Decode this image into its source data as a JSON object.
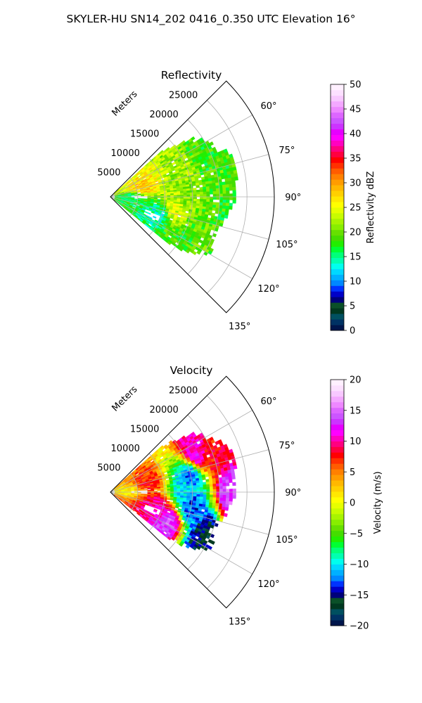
{
  "suptitle": "SKYLER-HU  SN14_202  0416_0.350 UTC Elevation 16°",
  "panels": [
    {
      "id": "reflectivity",
      "title": "Reflectivity",
      "radial_label": "Meters",
      "r_ticks": [
        5000,
        10000,
        15000,
        20000,
        25000
      ],
      "r_tick_labels": [
        "5000",
        "10000",
        "15000",
        "20000",
        "25000"
      ],
      "theta_ticks": [
        60,
        75,
        90,
        105,
        120,
        135
      ],
      "theta_tick_labels": [
        "60°",
        "75°",
        "90°",
        "105°",
        "120°",
        "135°"
      ],
      "colorbar": {
        "label": "Reflectivity dBZ",
        "min": 0,
        "max": 50,
        "ticks": [
          0,
          5,
          10,
          15,
          20,
          25,
          30,
          35,
          40,
          45,
          50
        ],
        "tick_labels": [
          "0",
          "5",
          "10",
          "15",
          "20",
          "25",
          "30",
          "35",
          "40",
          "45",
          "50"
        ],
        "colors": [
          "#00164c",
          "#003264",
          "#005060",
          "#003820",
          "#0a5028",
          "#00007a",
          "#0000c8",
          "#0033ff",
          "#0088ff",
          "#00b0ff",
          "#00d8ff",
          "#00ffee",
          "#00ffb0",
          "#00ff7a",
          "#00ff33",
          "#22ee00",
          "#44dd00",
          "#66e000",
          "#88ee00",
          "#a8f400",
          "#c8fc00",
          "#e6ff00",
          "#ffff00",
          "#ffe800",
          "#ffd000",
          "#ffb800",
          "#ff9c00",
          "#ff8000",
          "#ff5c00",
          "#ff3000",
          "#ff0000",
          "#ff0040",
          "#ff0080",
          "#ff00c0",
          "#ff00ff",
          "#e600ff",
          "#cc33ff",
          "#cc55ff",
          "#dd66ff",
          "#ee88ff",
          "#f4a8ff",
          "#f8c8ff",
          "#fce0ff",
          "#fff0ff"
        ]
      }
    },
    {
      "id": "velocity",
      "title": "Velocity",
      "radial_label": "Meters",
      "r_ticks": [
        5000,
        10000,
        15000,
        20000,
        25000
      ],
      "r_tick_labels": [
        "5000",
        "10000",
        "15000",
        "20000",
        "25000"
      ],
      "theta_ticks": [
        60,
        75,
        90,
        105,
        120,
        135
      ],
      "theta_tick_labels": [
        "60°",
        "75°",
        "90°",
        "105°",
        "120°",
        "135°"
      ],
      "colorbar": {
        "label": "Velocity (m/s)",
        "min": -20,
        "max": 20,
        "ticks": [
          -20,
          -15,
          -10,
          -5,
          0,
          5,
          10,
          15,
          20
        ],
        "tick_labels": [
          "−20",
          "−15",
          "−10",
          "−5",
          "0",
          "5",
          "10",
          "15",
          "20"
        ],
        "colors": [
          "#00164c",
          "#003264",
          "#005060",
          "#003820",
          "#0a5028",
          "#00007a",
          "#0000c8",
          "#0033ff",
          "#0088ff",
          "#00b0ff",
          "#00d8ff",
          "#00ffee",
          "#00ffb0",
          "#00ff7a",
          "#00ff33",
          "#22ee00",
          "#44dd00",
          "#66e000",
          "#88ee00",
          "#a8f400",
          "#c8fc00",
          "#e6ff00",
          "#ffff00",
          "#ffe800",
          "#ffd000",
          "#ffb800",
          "#ff9c00",
          "#ff8000",
          "#ff5c00",
          "#ff3000",
          "#ff0000",
          "#ff0040",
          "#ff0080",
          "#ff00c0",
          "#ff00ff",
          "#e600ff",
          "#cc33ff",
          "#cc55ff",
          "#dd66ff",
          "#ee88ff",
          "#f4a8ff",
          "#f8c8ff",
          "#fce0ff",
          "#fff0ff"
        ]
      }
    }
  ],
  "chart_data": [
    {
      "type": "heatmap",
      "projection": "polar",
      "title": "Reflectivity",
      "units": "dBZ",
      "r_label": "Meters",
      "r_range": [
        0,
        30000
      ],
      "theta_range_deg": [
        45,
        135
      ],
      "grid": true,
      "value_range": [
        0,
        50
      ],
      "colorbar_label": "Reflectivity dBZ",
      "echo_region": {
        "theta_deg": [
          48,
          129
        ],
        "r_max_m": [
          [
            48,
            12000
          ],
          [
            55,
            18500
          ],
          [
            62,
            21000
          ],
          [
            70,
            23000
          ],
          [
            78,
            23500
          ],
          [
            85,
            23000
          ],
          [
            92,
            22500
          ],
          [
            100,
            21500
          ],
          [
            108,
            20000
          ],
          [
            115,
            20500
          ],
          [
            120,
            21000
          ],
          [
            126,
            17000
          ],
          [
            129,
            13000
          ]
        ]
      },
      "approx_values": [
        {
          "theta_deg": 75,
          "r_m": 6000,
          "dbz": 28
        },
        {
          "theta_deg": 72,
          "r_m": 14000,
          "dbz": 22
        },
        {
          "theta_deg": 90,
          "r_m": 4000,
          "dbz": 16
        },
        {
          "theta_deg": 90,
          "r_m": 14000,
          "dbz": 21
        },
        {
          "theta_deg": 100,
          "r_m": 12000,
          "dbz": 24
        },
        {
          "theta_deg": 110,
          "r_m": 9000,
          "dbz": 14
        },
        {
          "theta_deg": 112,
          "r_m": 18000,
          "dbz": 20
        },
        {
          "theta_deg": 122,
          "r_m": 16000,
          "dbz": 18
        },
        {
          "theta_deg": 80,
          "r_m": 20000,
          "dbz": 19
        },
        {
          "theta_deg": 65,
          "r_m": 19000,
          "dbz": 18
        },
        {
          "theta_deg": 95,
          "r_m": 21000,
          "dbz": 18
        }
      ]
    },
    {
      "type": "heatmap",
      "projection": "polar",
      "title": "Velocity",
      "units": "m/s",
      "r_label": "Meters",
      "r_range": [
        0,
        30000
      ],
      "theta_range_deg": [
        45,
        135
      ],
      "grid": true,
      "value_range": [
        -20,
        20
      ],
      "colorbar_label": "Velocity (m/s)",
      "echo_region": {
        "theta_deg": [
          48,
          129
        ],
        "r_max_m": [
          [
            48,
            12000
          ],
          [
            55,
            18500
          ],
          [
            62,
            21000
          ],
          [
            70,
            23000
          ],
          [
            78,
            23500
          ],
          [
            85,
            23000
          ],
          [
            92,
            22500
          ],
          [
            100,
            21500
          ],
          [
            108,
            20000
          ],
          [
            115,
            20500
          ],
          [
            120,
            21000
          ],
          [
            126,
            17000
          ],
          [
            129,
            13000
          ]
        ]
      },
      "approx_values": [
        {
          "theta_deg": 85,
          "r_m": 3000,
          "v": 1
        },
        {
          "theta_deg": 75,
          "r_m": 7000,
          "v": 7
        },
        {
          "theta_deg": 65,
          "r_m": 17000,
          "v": 11
        },
        {
          "theta_deg": 80,
          "r_m": 15000,
          "v": -12
        },
        {
          "theta_deg": 90,
          "r_m": 14000,
          "v": -10
        },
        {
          "theta_deg": 100,
          "r_m": 15000,
          "v": -13
        },
        {
          "theta_deg": 90,
          "r_m": 22000,
          "v": 14
        },
        {
          "theta_deg": 110,
          "r_m": 9000,
          "v": 10
        },
        {
          "theta_deg": 118,
          "r_m": 12000,
          "v": 14
        },
        {
          "theta_deg": 115,
          "r_m": 19000,
          "v": -16
        },
        {
          "theta_deg": 70,
          "r_m": 21000,
          "v": 8
        }
      ]
    }
  ]
}
